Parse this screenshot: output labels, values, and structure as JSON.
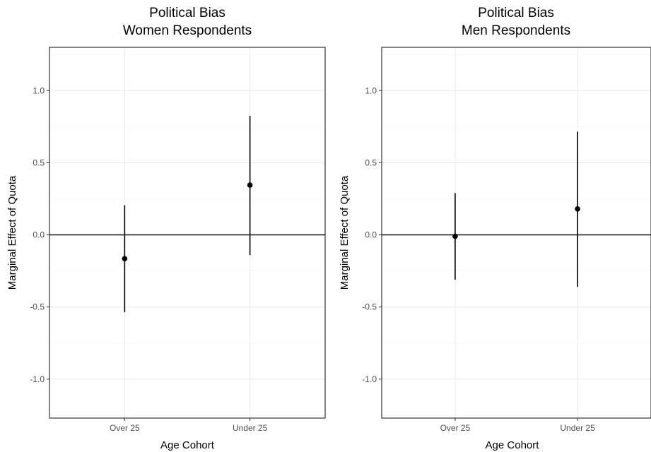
{
  "chart_data": [
    {
      "type": "scatter",
      "title_lines": [
        "Political Bias",
        "Women Respondents"
      ],
      "xlabel": "Age Cohort",
      "ylabel": "Marginal Effect of Quota",
      "categories": [
        "Over 25",
        "Under 25"
      ],
      "estimates": [
        -0.165,
        0.345
      ],
      "ci_lower": [
        -0.535,
        -0.14
      ],
      "ci_upper": [
        0.205,
        0.825
      ],
      "ylim": [
        -1.27,
        1.3
      ],
      "yticks": [
        -1.0,
        -0.5,
        0.0,
        0.5,
        1.0
      ],
      "ytick_labels": [
        "-1.0",
        "-0.5",
        "0.0",
        "0.5",
        "1.0"
      ],
      "reference_line": 0.0,
      "grid": true
    },
    {
      "type": "scatter",
      "title_lines": [
        "Political Bias",
        "Men Respondents"
      ],
      "xlabel": "Age Cohort",
      "ylabel": "Marginal Effect of Quota",
      "categories": [
        "Over 25",
        "Under 25"
      ],
      "estimates": [
        -0.01,
        0.18
      ],
      "ci_lower": [
        -0.31,
        -0.36
      ],
      "ci_upper": [
        0.29,
        0.715
      ],
      "ylim": [
        -1.27,
        1.3
      ],
      "yticks": [
        -1.0,
        -0.5,
        0.0,
        0.5,
        1.0
      ],
      "ytick_labels": [
        "-1.0",
        "-0.5",
        "0.0",
        "0.5",
        "1.0"
      ],
      "reference_line": 0.0,
      "grid": true
    }
  ]
}
